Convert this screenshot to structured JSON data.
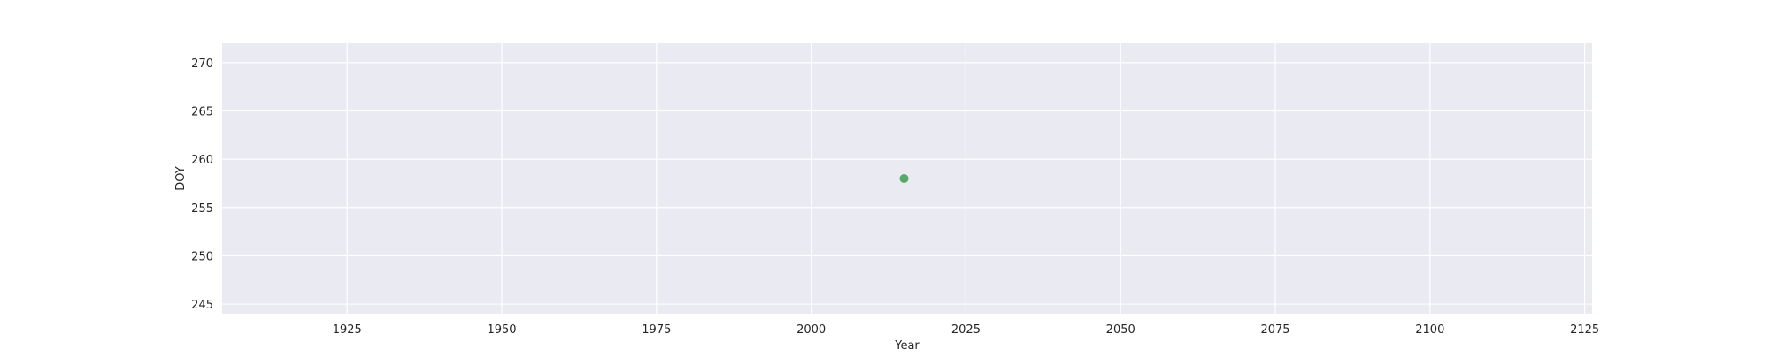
{
  "chart_data": {
    "type": "scatter",
    "title": "",
    "xlabel": "Year",
    "ylabel": "DOY",
    "xlim": [
      1904.8,
      2126.2
    ],
    "ylim": [
      244,
      272
    ],
    "xticks": [
      1925,
      1950,
      1975,
      2000,
      2025,
      2050,
      2075,
      2100,
      2125
    ],
    "yticks": [
      245,
      250,
      255,
      260,
      265,
      270
    ],
    "grid": true,
    "colors": {
      "background": "#eaeaf2",
      "grid": "#ffffff",
      "point": "#55a868"
    },
    "series": [
      {
        "points": [
          {
            "x": 2015,
            "y": 258
          }
        ]
      }
    ]
  }
}
